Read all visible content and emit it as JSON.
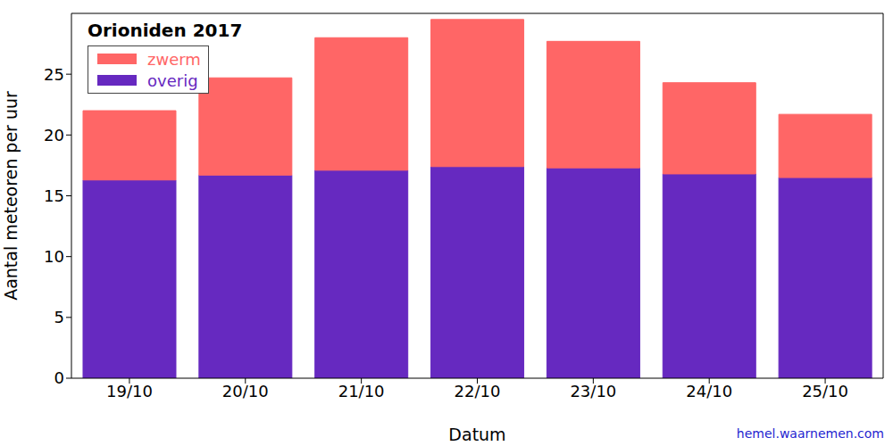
{
  "chart_data": {
    "type": "bar",
    "title": "Orioniden 2017",
    "x_label": "Datum",
    "y_label": "Aantal meteoren per uur",
    "annotations": [
      "hemel.waarnemen.com"
    ],
    "categories": [
      "19/10",
      "20/10",
      "21/10",
      "22/10",
      "23/10",
      "24/10",
      "25/10"
    ],
    "series": [
      {
        "name": "zwerm",
        "color": "#ff6666",
        "values": [
          5.7,
          8.0,
          10.9,
          12.1,
          10.4,
          7.5,
          5.2
        ]
      },
      {
        "name": "overig",
        "color": "#6629c0",
        "values": [
          16.3,
          16.7,
          17.1,
          17.4,
          17.3,
          16.8,
          16.5
        ]
      }
    ],
    "stacked": true,
    "legend": "upper left",
    "ylim": [
      0,
      30
    ],
    "yticks": [
      0,
      5,
      10,
      15,
      20,
      25
    ],
    "grid": false
  }
}
